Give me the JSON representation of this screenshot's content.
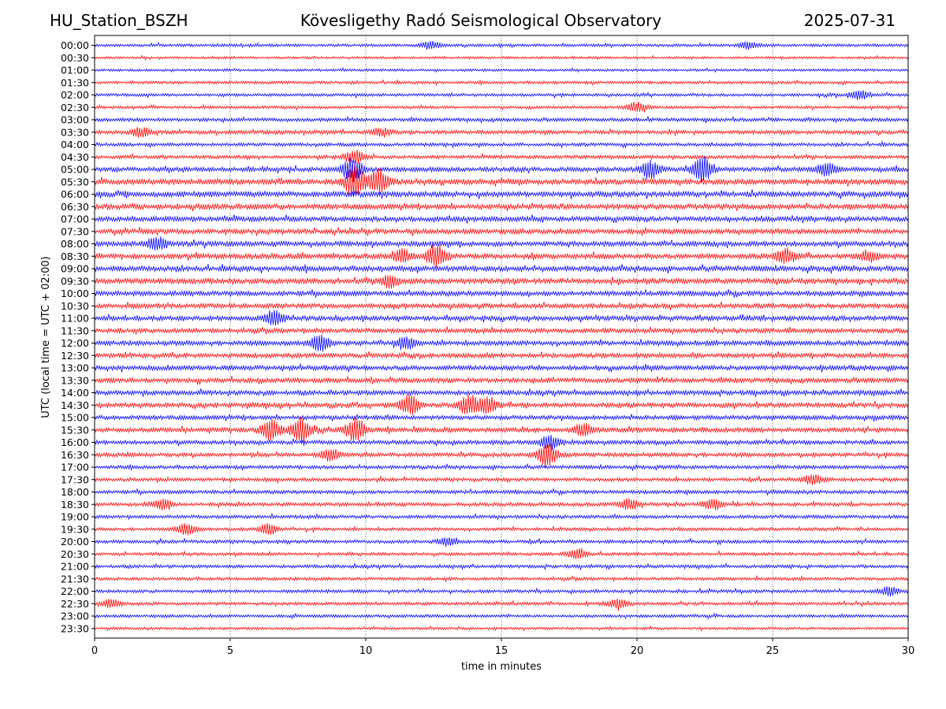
{
  "header": {
    "station": "HU_Station_BSZH",
    "observatory": "Kövesligethy Radó Seismological Observatory",
    "date": "2025-07-31"
  },
  "chart_data": {
    "type": "line",
    "title": "Kövesligethy Radó Seismological Observatory",
    "xlabel": "time in minutes",
    "ylabel": "UTC (local time = UTC + 02:00)",
    "xlim": [
      0,
      30
    ],
    "xticks": [
      0,
      5,
      10,
      15,
      20,
      25,
      30
    ],
    "grid": "vertical dotted at 5-minute ticks",
    "colors": [
      "#0000ff",
      "#ff0000"
    ],
    "series": [
      {
        "label": "00:00",
        "level": 0.2
      },
      {
        "label": "00:30",
        "level": 0.1
      },
      {
        "label": "01:00",
        "level": 0.12
      },
      {
        "label": "01:30",
        "level": 0.2
      },
      {
        "label": "02:00",
        "level": 0.22
      },
      {
        "label": "02:30",
        "level": 0.18
      },
      {
        "label": "03:00",
        "level": 0.35
      },
      {
        "label": "03:30",
        "level": 0.4
      },
      {
        "label": "04:00",
        "level": 0.3
      },
      {
        "label": "04:30",
        "level": 0.32
      },
      {
        "label": "05:00",
        "level": 0.55
      },
      {
        "label": "05:30",
        "level": 0.7
      },
      {
        "label": "06:00",
        "level": 0.75
      },
      {
        "label": "06:30",
        "level": 0.7
      },
      {
        "label": "07:00",
        "level": 0.62
      },
      {
        "label": "07:30",
        "level": 0.62
      },
      {
        "label": "08:00",
        "level": 0.65
      },
      {
        "label": "08:30",
        "level": 0.65
      },
      {
        "label": "09:00",
        "level": 0.7
      },
      {
        "label": "09:30",
        "level": 0.68
      },
      {
        "label": "10:00",
        "level": 0.6
      },
      {
        "label": "10:30",
        "level": 0.58
      },
      {
        "label": "11:00",
        "level": 0.58
      },
      {
        "label": "11:30",
        "level": 0.55
      },
      {
        "label": "12:00",
        "level": 0.58
      },
      {
        "label": "12:30",
        "level": 0.55
      },
      {
        "label": "13:00",
        "level": 0.58
      },
      {
        "label": "13:30",
        "level": 0.58
      },
      {
        "label": "14:00",
        "level": 0.55
      },
      {
        "label": "14:30",
        "level": 0.55
      },
      {
        "label": "15:00",
        "level": 0.5
      },
      {
        "label": "15:30",
        "level": 0.55
      },
      {
        "label": "16:00",
        "level": 0.45
      },
      {
        "label": "16:30",
        "level": 0.45
      },
      {
        "label": "17:00",
        "level": 0.35
      },
      {
        "label": "17:30",
        "level": 0.32
      },
      {
        "label": "18:00",
        "level": 0.35
      },
      {
        "label": "18:30",
        "level": 0.35
      },
      {
        "label": "19:00",
        "level": 0.3
      },
      {
        "label": "19:30",
        "level": 0.28
      },
      {
        "label": "20:00",
        "level": 0.3
      },
      {
        "label": "20:30",
        "level": 0.25
      },
      {
        "label": "21:00",
        "level": 0.28
      },
      {
        "label": "21:30",
        "level": 0.25
      },
      {
        "label": "22:00",
        "level": 0.25
      },
      {
        "label": "22:30",
        "level": 0.25
      },
      {
        "label": "23:00",
        "level": 0.22
      },
      {
        "label": "23:30",
        "level": 0.15
      }
    ],
    "bursts": [
      {
        "trace": "00:00",
        "t": 12.4,
        "amp": 0.3
      },
      {
        "trace": "00:00",
        "t": 24.1,
        "amp": 0.25
      },
      {
        "trace": "02:00",
        "t": 28.2,
        "amp": 0.35
      },
      {
        "trace": "02:30",
        "t": 20.0,
        "amp": 0.4
      },
      {
        "trace": "03:30",
        "t": 1.7,
        "amp": 0.35
      },
      {
        "trace": "03:30",
        "t": 10.6,
        "amp": 0.3
      },
      {
        "trace": "04:30",
        "t": 9.6,
        "amp": 0.6
      },
      {
        "trace": "05:00",
        "t": 9.5,
        "amp": 1.0
      },
      {
        "trace": "05:00",
        "t": 20.5,
        "amp": 0.7
      },
      {
        "trace": "05:00",
        "t": 22.4,
        "amp": 1.0
      },
      {
        "trace": "05:00",
        "t": 27.0,
        "amp": 0.5
      },
      {
        "trace": "05:30",
        "t": 9.6,
        "amp": 1.4
      },
      {
        "trace": "05:30",
        "t": 10.5,
        "amp": 1.0
      },
      {
        "trace": "08:00",
        "t": 2.3,
        "amp": 0.5
      },
      {
        "trace": "08:30",
        "t": 12.6,
        "amp": 0.9
      },
      {
        "trace": "08:30",
        "t": 11.3,
        "amp": 0.5
      },
      {
        "trace": "08:30",
        "t": 25.5,
        "amp": 0.55
      },
      {
        "trace": "08:30",
        "t": 28.6,
        "amp": 0.4
      },
      {
        "trace": "09:30",
        "t": 10.9,
        "amp": 0.45
      },
      {
        "trace": "11:00",
        "t": 6.6,
        "amp": 0.6
      },
      {
        "trace": "12:00",
        "t": 8.3,
        "amp": 0.6
      },
      {
        "trace": "12:00",
        "t": 11.5,
        "amp": 0.5
      },
      {
        "trace": "14:30",
        "t": 11.6,
        "amp": 0.8
      },
      {
        "trace": "14:30",
        "t": 13.8,
        "amp": 0.8
      },
      {
        "trace": "14:30",
        "t": 14.5,
        "amp": 0.6
      },
      {
        "trace": "15:30",
        "t": 6.5,
        "amp": 0.8
      },
      {
        "trace": "15:30",
        "t": 7.6,
        "amp": 1.0
      },
      {
        "trace": "15:30",
        "t": 9.6,
        "amp": 0.9
      },
      {
        "trace": "15:30",
        "t": 18.0,
        "amp": 0.5
      },
      {
        "trace": "16:00",
        "t": 16.8,
        "amp": 0.5
      },
      {
        "trace": "16:30",
        "t": 16.7,
        "amp": 1.0
      },
      {
        "trace": "16:30",
        "t": 8.7,
        "amp": 0.45
      },
      {
        "trace": "17:30",
        "t": 26.5,
        "amp": 0.4
      },
      {
        "trace": "18:30",
        "t": 2.5,
        "amp": 0.4
      },
      {
        "trace": "18:30",
        "t": 19.7,
        "amp": 0.4
      },
      {
        "trace": "18:30",
        "t": 22.8,
        "amp": 0.4
      },
      {
        "trace": "19:30",
        "t": 3.4,
        "amp": 0.45
      },
      {
        "trace": "19:30",
        "t": 6.4,
        "amp": 0.4
      },
      {
        "trace": "20:00",
        "t": 13.0,
        "amp": 0.3
      },
      {
        "trace": "20:30",
        "t": 17.8,
        "amp": 0.4
      },
      {
        "trace": "22:00",
        "t": 29.3,
        "amp": 0.35
      },
      {
        "trace": "22:30",
        "t": 19.3,
        "amp": 0.4
      },
      {
        "trace": "22:30",
        "t": 0.6,
        "amp": 0.35
      }
    ]
  }
}
